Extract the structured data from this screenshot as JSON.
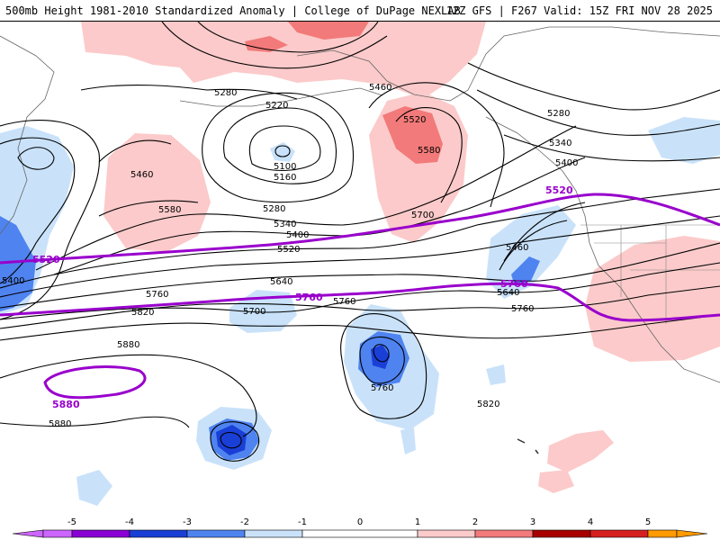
{
  "header": {
    "title_left": "500mb Height 1981-2010 Standardized Anomaly | College of DuPage NEXLAB",
    "title_right": "12Z GFS | F267 Valid: 15Z FRI NOV 28 2025"
  },
  "colors": {
    "anomaly_neg_5": "#cc66ff",
    "anomaly_neg_4": "#8a00d4",
    "anomaly_neg_3": "#1a3fd6",
    "anomaly_neg_2": "#4f83f0",
    "anomaly_neg_1": "#c9e2fa",
    "anomaly_pos_1": "#fccaca",
    "anomaly_pos_2": "#f27a7a",
    "anomaly_pos_3": "#d62020",
    "anomaly_pos_4": "#a80000",
    "anomaly_pos_5": "#ff9a00",
    "climo_contour": "#9900cc",
    "height_contour": "#000000"
  },
  "contour_labels": {
    "h5280_a": "5280",
    "h5220": "5220",
    "h5100": "5100",
    "h5160": "5160",
    "h5460_a": "5460",
    "h5580_a": "5580",
    "h5280_b": "5280",
    "h5340_a": "5340",
    "h5400_a": "5400",
    "h5520_a": "5520",
    "h5700_a": "5700",
    "h5640_a": "5640",
    "h5700_b": "5700",
    "h5760_a": "5760",
    "h5820_a": "5820",
    "h5880_a": "5880",
    "h5880_b": "5880",
    "h5760_b": "5760",
    "h5820_b": "5820",
    "h5400_b": "5400",
    "h5460_b": "5460",
    "h5520_b": "5520",
    "h5580_b": "5580",
    "h5280_c": "5280",
    "h5340_b": "5340",
    "h5400_c": "5400",
    "h5460_c": "5460",
    "h5640_b": "5640",
    "h5760_c": "5760",
    "h5760_d": "5760"
  },
  "climo_labels": {
    "c5520_w": "5520",
    "c5520_e": "5520",
    "c5760_c": "5760",
    "c5760_e": "5760",
    "c5880": "5880"
  },
  "legend": {
    "ticks": [
      "-5",
      "-4",
      "-3",
      "-2",
      "-1",
      "0",
      "1",
      "2",
      "3",
      "4",
      "5"
    ]
  }
}
